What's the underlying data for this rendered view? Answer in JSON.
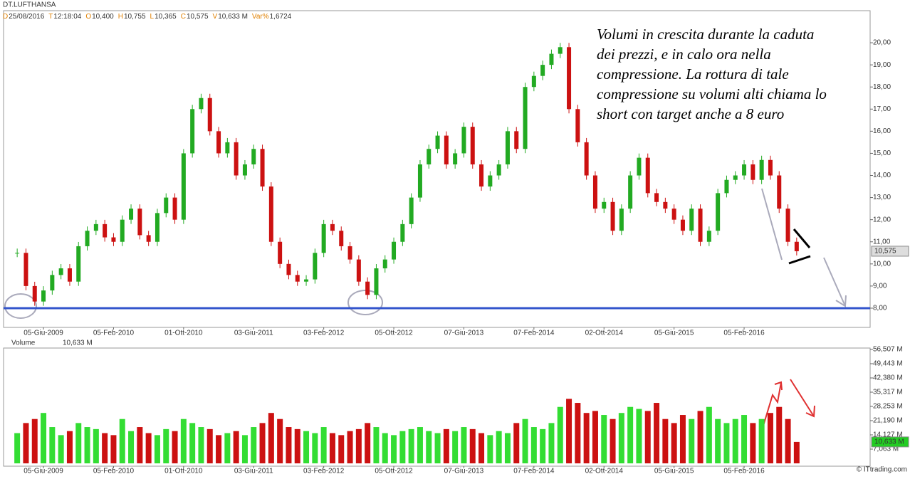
{
  "header": {
    "symbol": "DT.LUFTHANSA",
    "fields": [
      {
        "key": "D",
        "value": "25/08/2016"
      },
      {
        "key": "T",
        "value": "12:18:04"
      },
      {
        "key": "O",
        "value": "10,400"
      },
      {
        "key": "H",
        "value": "10,755"
      },
      {
        "key": "L",
        "value": "10,365"
      },
      {
        "key": "C",
        "value": "10,575"
      },
      {
        "key": "V",
        "value": "10,633 M"
      },
      {
        "key": "Var%",
        "value": "1,6724"
      }
    ]
  },
  "annotation": [
    "Volumi in crescita durante la caduta",
    "dei prezzi, e in calo ora nella",
    "compressione. La rottura di tale",
    "compressione su volumi alti chiama lo",
    "short con target anche a 8 euro"
  ],
  "footer": "© ITtrading.com",
  "chart_data": [
    {
      "type": "candle",
      "categories": [
        null,
        null,
        null,
        "05-Giu-2009",
        null,
        null,
        null,
        null,
        null,
        null,
        null,
        "05-Feb-2010",
        null,
        null,
        null,
        null,
        null,
        null,
        null,
        "01-Ott-2010",
        null,
        null,
        null,
        null,
        null,
        null,
        null,
        "03-Giu-2011",
        null,
        null,
        null,
        null,
        null,
        null,
        null,
        "03-Feb-2012",
        null,
        null,
        null,
        null,
        null,
        null,
        null,
        "05-Ott-2012",
        null,
        null,
        null,
        null,
        null,
        null,
        null,
        "07-Giu-2013",
        null,
        null,
        null,
        null,
        null,
        null,
        null,
        "07-Feb-2014",
        null,
        null,
        null,
        null,
        null,
        null,
        null,
        "02-Ott-2014",
        null,
        null,
        null,
        null,
        null,
        null,
        null,
        "05-Giu-2015",
        null,
        null,
        null,
        null,
        null,
        null,
        null,
        "05-Feb-2016",
        null,
        null,
        null,
        null,
        null,
        null
      ],
      "values": [
        10.5,
        9.0,
        8.3,
        8.8,
        9.5,
        9.8,
        9.2,
        10.8,
        11.5,
        11.8,
        11.2,
        11.0,
        12.0,
        12.5,
        11.3,
        11.0,
        12.3,
        13.0,
        12.0,
        15.0,
        17.0,
        17.5,
        16.0,
        15.0,
        15.5,
        14.0,
        14.5,
        15.2,
        13.5,
        11.0,
        10.0,
        9.5,
        9.2,
        9.3,
        10.5,
        11.8,
        11.5,
        10.8,
        10.2,
        9.2,
        8.6,
        9.8,
        10.2,
        11.0,
        11.8,
        13.0,
        14.5,
        15.2,
        15.8,
        14.5,
        15.0,
        16.2,
        14.5,
        13.5,
        14.0,
        14.5,
        16.0,
        15.2,
        18.0,
        18.5,
        19.0,
        19.5,
        19.8,
        17.0,
        15.5,
        14.0,
        12.5,
        12.8,
        11.5,
        12.5,
        14.0,
        14.8,
        13.2,
        12.8,
        12.5,
        12.0,
        11.5,
        12.5,
        11.0,
        11.5,
        13.2,
        13.8,
        14.0,
        14.5,
        13.8,
        14.7,
        14.0,
        12.5,
        11.0,
        10.575
      ],
      "up_color": "#22aa22",
      "down_color": "#cc1111",
      "ylim": [
        7.13,
        21.45
      ],
      "yticks": [
        {
          "value": 8,
          "label": "8,00"
        },
        {
          "value": 9,
          "label": "9,00"
        },
        {
          "value": 10,
          "label": "10,00"
        },
        {
          "value": 11,
          "label": "11,00"
        },
        {
          "value": 12,
          "label": "12,00"
        },
        {
          "value": 13,
          "label": "13,00"
        },
        {
          "value": 14,
          "label": "14,00"
        },
        {
          "value": 15,
          "label": "15,00"
        },
        {
          "value": 16,
          "label": "16,00"
        },
        {
          "value": 17,
          "label": "17,00"
        },
        {
          "value": 18,
          "label": "18,00"
        },
        {
          "value": 19,
          "label": "19,00"
        },
        {
          "value": 20,
          "label": "20,00"
        }
      ],
      "hline": {
        "value": 8,
        "color": "#3355cc"
      },
      "last": {
        "value": 10.575,
        "label": "10,575"
      }
    },
    {
      "type": "volume",
      "title": "Volume",
      "subtitle": "10,633 M",
      "values": [
        15,
        20,
        22,
        25,
        18,
        14,
        16,
        20,
        18,
        17,
        15,
        14,
        22,
        16,
        18,
        15,
        14,
        17,
        16,
        22,
        20,
        18,
        17,
        14,
        15,
        16,
        14,
        18,
        20,
        25,
        22,
        18,
        17,
        16,
        15,
        18,
        15,
        14,
        16,
        17,
        20,
        18,
        15,
        14,
        16,
        17,
        18,
        16,
        15,
        17,
        16,
        18,
        17,
        15,
        14,
        16,
        15,
        20,
        22,
        18,
        17,
        20,
        28,
        32,
        30,
        25,
        26,
        24,
        22,
        25,
        28,
        27,
        26,
        30,
        22,
        20,
        24,
        22,
        26,
        28,
        22,
        20,
        22,
        24,
        20,
        22,
        25,
        28,
        22,
        10.633
      ],
      "up_color": "#33dd33",
      "down_color": "#cc1111",
      "ylim": [
        -1.41,
        57.21
      ],
      "yticks": [
        {
          "value": 7.063,
          "label": "7,063 M"
        },
        {
          "value": 14.127,
          "label": "14,127 M"
        },
        {
          "value": 21.19,
          "label": "21,190 M"
        },
        {
          "value": 28.253,
          "label": "28,253 M"
        },
        {
          "value": 35.317,
          "label": "35,317 M"
        },
        {
          "value": 42.38,
          "label": "42,380 M"
        },
        {
          "value": 49.443,
          "label": "49,443 M"
        },
        {
          "value": 56.507,
          "label": "56,507 M"
        }
      ],
      "last": {
        "value": 10.633,
        "label": "10,633 M"
      }
    }
  ]
}
